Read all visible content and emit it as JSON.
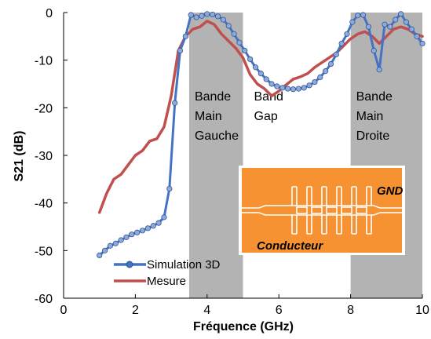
{
  "chart_data": {
    "type": "line",
    "xlabel": "Fréquence (GHz)",
    "ylabel": "S21 (dB)",
    "xlim": [
      0,
      10
    ],
    "ylim": [
      -60,
      0
    ],
    "x_ticks": [
      "0",
      "2",
      "4",
      "6",
      "8",
      "10"
    ],
    "y_ticks": [
      "0",
      "-10",
      "-20",
      "-30",
      "-40",
      "-50",
      "-60"
    ],
    "grid": false,
    "legend_position": "bottom-left",
    "shaded_bands": [
      {
        "x_range": [
          3.5,
          5.0
        ],
        "color": "#b3b3b3",
        "lines": [
          "Bande",
          "Main",
          "Gauche"
        ]
      },
      {
        "x_range": [
          5.0,
          8.0
        ],
        "color": "#ffffff",
        "lines": [
          "Band",
          "Gap"
        ]
      },
      {
        "x_range": [
          8.0,
          10.0
        ],
        "color": "#b3b3b3",
        "lines": [
          "Bande",
          "Main",
          "Droite"
        ]
      }
    ],
    "series": [
      {
        "name": "Simulation 3D",
        "color": "#4472c4",
        "markers": true,
        "x": [
          1.0,
          1.15,
          1.3,
          1.45,
          1.6,
          1.75,
          1.9,
          2.05,
          2.2,
          2.35,
          2.5,
          2.65,
          2.8,
          2.95,
          3.1,
          3.25,
          3.4,
          3.55,
          3.7,
          3.85,
          4.0,
          4.15,
          4.3,
          4.45,
          4.6,
          4.75,
          4.9,
          5.05,
          5.2,
          5.35,
          5.5,
          5.65,
          5.8,
          5.95,
          6.1,
          6.25,
          6.4,
          6.55,
          6.7,
          6.85,
          7.0,
          7.15,
          7.3,
          7.45,
          7.6,
          7.75,
          7.9,
          8.05,
          8.2,
          8.35,
          8.5,
          8.65,
          8.8,
          8.95,
          9.1,
          9.25,
          9.4,
          9.55,
          9.7,
          9.85,
          10.0
        ],
        "y": [
          -51,
          -50,
          -49,
          -48.5,
          -47.8,
          -47.2,
          -46.6,
          -46.2,
          -45.8,
          -45.3,
          -44.8,
          -44.2,
          -43,
          -37,
          -19,
          -8,
          -5,
          -0.5,
          -1,
          -0.7,
          -0.3,
          -0.4,
          -0.8,
          -1.5,
          -2.8,
          -4.5,
          -6.3,
          -8,
          -9.8,
          -11.5,
          -12.8,
          -14,
          -15,
          -15.5,
          -15.8,
          -16,
          -16.1,
          -16,
          -15.8,
          -15.3,
          -14.6,
          -13.6,
          -12.3,
          -10.8,
          -8.8,
          -6.5,
          -4.5,
          -2,
          -0.6,
          -0.5,
          -3,
          -8,
          -12,
          -2.5,
          -3,
          -1.5,
          -0.3,
          -2,
          -3.5,
          -5,
          -6.5
        ]
      },
      {
        "name": "Mesure",
        "color": "#c0504d",
        "markers": false,
        "x": [
          1.0,
          1.2,
          1.4,
          1.6,
          1.8,
          2.0,
          2.2,
          2.4,
          2.6,
          2.8,
          3.0,
          3.2,
          3.4,
          3.6,
          3.8,
          4.0,
          4.2,
          4.4,
          4.6,
          4.8,
          5.0,
          5.2,
          5.4,
          5.6,
          5.8,
          6.0,
          6.2,
          6.4,
          6.6,
          6.8,
          7.0,
          7.2,
          7.4,
          7.6,
          7.8,
          8.0,
          8.2,
          8.4,
          8.6,
          8.8,
          9.0,
          9.2,
          9.4,
          9.6,
          9.8,
          10.0
        ],
        "y": [
          -42,
          -38,
          -35,
          -34,
          -32,
          -30,
          -29,
          -27,
          -26.5,
          -24,
          -17.5,
          -8,
          -5,
          -3.5,
          -3,
          -1.8,
          -2.5,
          -4.5,
          -6,
          -7.5,
          -9.5,
          -13,
          -15,
          -16,
          -17.5,
          -16.5,
          -15.2,
          -14,
          -13.5,
          -12.8,
          -11.5,
          -10.5,
          -9.5,
          -8.5,
          -7,
          -5.5,
          -4.5,
          -4,
          -5,
          -6.5,
          -5,
          -3.5,
          -3,
          -3.5,
          -4.5,
          -5
        ]
      }
    ],
    "inset": {
      "labels": [
        "GND",
        "Conducteur"
      ],
      "colors": {
        "substrate": "#f79232",
        "metal": "#ffffff"
      }
    }
  }
}
